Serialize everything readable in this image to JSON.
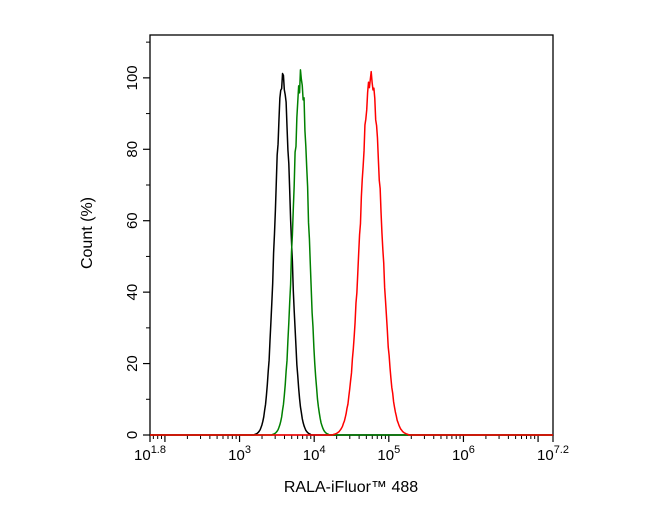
{
  "figure": {
    "background_color": "#ffffff",
    "frame_color": "#000000"
  },
  "chart_data": {
    "type": "line",
    "subtype": "flow-cytometry-histogram",
    "title": "",
    "xlabel": "RALA-iFluor™ 488",
    "ylabel": "Count (%)",
    "x_scale": "log10",
    "x_range_log10": [
      1.8,
      7.2
    ],
    "ylim": [
      0,
      112
    ],
    "grid": false,
    "legend": "none",
    "y_ticks": [
      0,
      20,
      40,
      60,
      80,
      100
    ],
    "y_minor_ticks": [
      10,
      30,
      50,
      70,
      90,
      110
    ],
    "x_labeled_ticks": [
      {
        "log10": 1.8,
        "base": "10",
        "exp": "1.8"
      },
      {
        "log10": 3,
        "base": "10",
        "exp": "3"
      },
      {
        "log10": 4,
        "base": "10",
        "exp": "4"
      },
      {
        "log10": 5,
        "base": "10",
        "exp": "5"
      },
      {
        "log10": 6,
        "base": "10",
        "exp": "6"
      },
      {
        "log10": 7.2,
        "base": "10",
        "exp": "7.2"
      }
    ],
    "x_unlabeled_decade_ticks": [
      2,
      7
    ],
    "series": [
      {
        "name": "black-curve",
        "color": "#000000",
        "peak_log10": 3.58,
        "peak_x_approx": 3800,
        "sigma_log10": 0.105,
        "peak_y": 100
      },
      {
        "name": "green-curve",
        "color": "#008000",
        "peak_log10": 3.82,
        "peak_x_approx": 6600,
        "sigma_log10": 0.105,
        "peak_y": 100
      },
      {
        "name": "red-curve",
        "color": "#ff0000",
        "peak_log10": 4.76,
        "peak_x_approx": 57500,
        "sigma_log10": 0.14,
        "peak_y": 100
      }
    ]
  }
}
